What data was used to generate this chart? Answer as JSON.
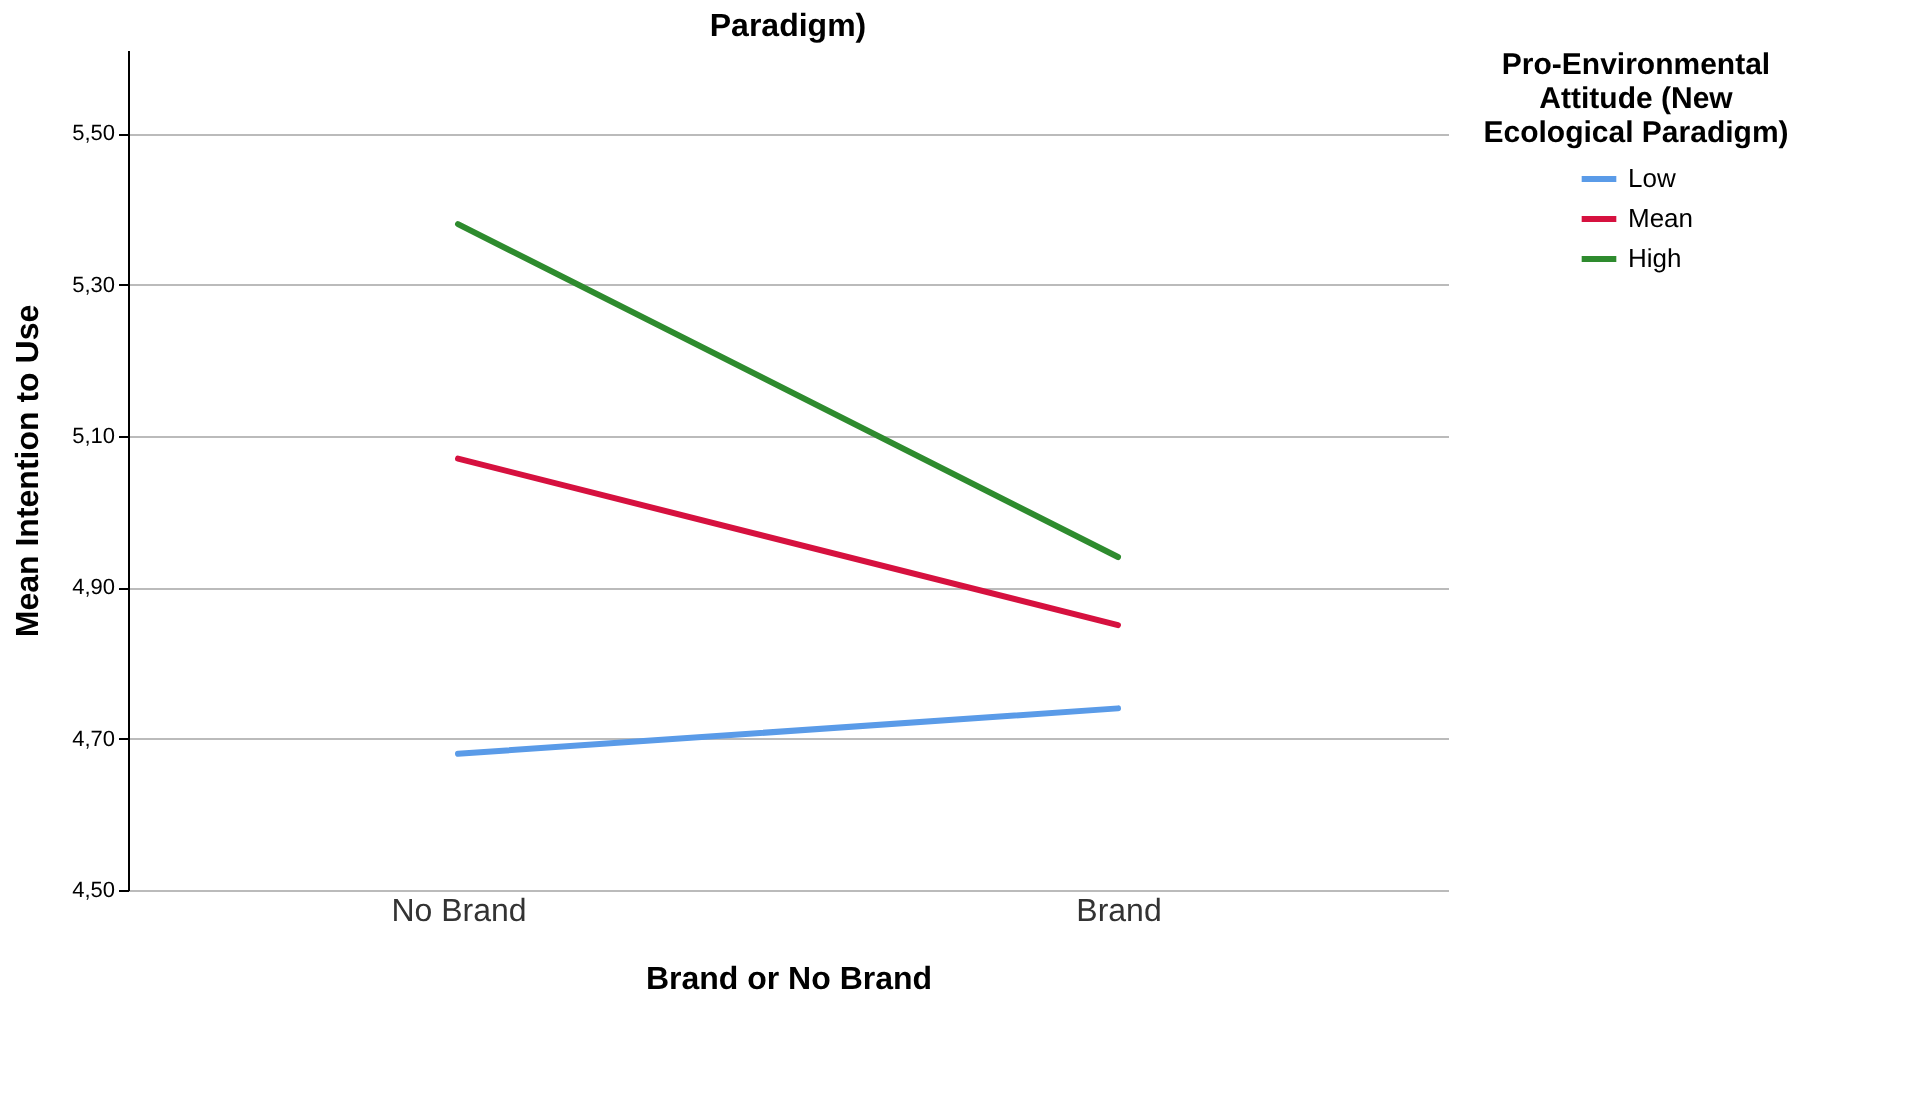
{
  "chart_data": {
    "type": "line",
    "title": "Paradigm)",
    "xlabel": "Brand or No Brand",
    "ylabel": "Mean Intention to Use",
    "legend_title": "Pro-Environmental Attitude (New Ecological Paradigm)",
    "categories": [
      "No Brand",
      "Brand"
    ],
    "series": [
      {
        "name": "Low",
        "color": "#5a9be8",
        "values": [
          4.68,
          4.74
        ]
      },
      {
        "name": "Mean",
        "color": "#d6113f",
        "values": [
          5.07,
          4.85
        ]
      },
      {
        "name": "High",
        "color": "#2e8b2e",
        "values": [
          5.38,
          4.94
        ]
      }
    ],
    "ylim": [
      4.5,
      5.61
    ],
    "yticks": [
      {
        "value": 4.5,
        "label": "4,50"
      },
      {
        "value": 4.7,
        "label": "4,70"
      },
      {
        "value": 4.9,
        "label": "4,90"
      },
      {
        "value": 5.1,
        "label": "5,10"
      },
      {
        "value": 5.3,
        "label": "5,30"
      },
      {
        "value": 5.5,
        "label": "5,50"
      }
    ],
    "grid": "y",
    "legend": "top right",
    "marker": "none",
    "line_style": "solid"
  }
}
